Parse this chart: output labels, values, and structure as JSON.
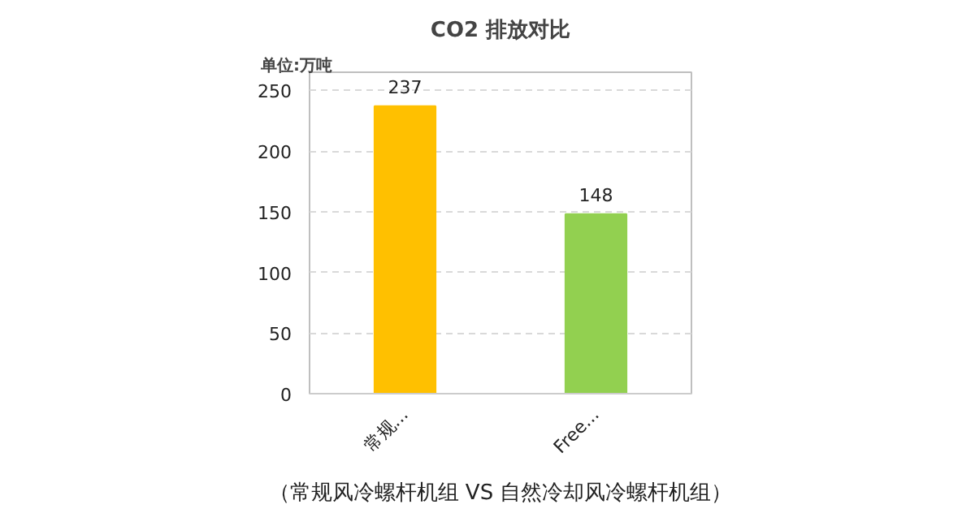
{
  "chart_data": {
    "type": "bar",
    "title": "CO2 排放对比",
    "ylabel": "单位:万吨",
    "categories": [
      "常规...",
      "Free..."
    ],
    "values": [
      237,
      148
    ],
    "colors": [
      "#ffc000",
      "#92d050"
    ],
    "ylim": [
      0,
      265
    ],
    "yticks": [
      0,
      50,
      100,
      150,
      200,
      250
    ],
    "grid": "y",
    "data_labels": true,
    "annotations": [
      "（常规风冷螺杆机组 VS 自然冷却风冷螺杆机组）"
    ]
  }
}
